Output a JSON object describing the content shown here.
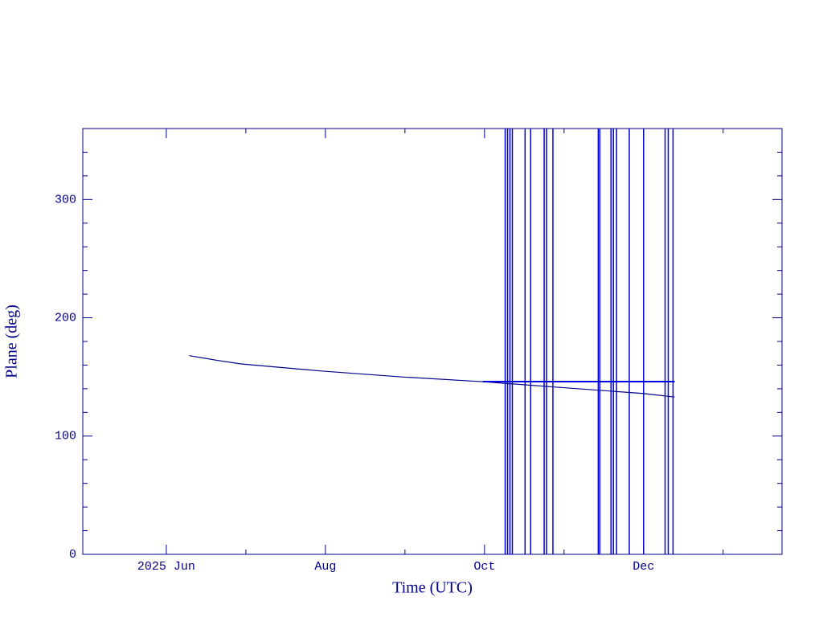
{
  "chart_data": {
    "type": "line",
    "xlabel": "Time (UTC)",
    "ylabel": "Plane (deg)",
    "xlim": [
      4.95,
      13.74
    ],
    "ylim": [
      0,
      360
    ],
    "xticks": [
      {
        "value": 6,
        "label": "2025 Jun"
      },
      {
        "value": 8,
        "label": "Aug"
      },
      {
        "value": 10,
        "label": "Oct"
      },
      {
        "value": 12,
        "label": "Dec"
      }
    ],
    "xminorticks": [
      7,
      9,
      11,
      13
    ],
    "yticks": [
      0,
      100,
      200,
      300
    ],
    "yminorticks": [
      20,
      40,
      60,
      80,
      120,
      140,
      160,
      180,
      220,
      240,
      260,
      280,
      320,
      340
    ],
    "axis_color": "#00008b",
    "series": [
      {
        "color": "#00008b",
        "x": [
          6.29,
          6.64,
          6.94,
          7.95,
          8.96,
          9.97,
          10.98,
          11.99,
          12.39
        ],
        "values": [
          168,
          164,
          161,
          155,
          150,
          146,
          141,
          136,
          133
        ]
      },
      {
        "color": "#0000e0",
        "x": [
          9.98,
          12.39
        ],
        "values": [
          146,
          146
        ]
      }
    ],
    "vlines": {
      "color": "#0000e0",
      "x": [
        10.26,
        10.29,
        10.32,
        10.35,
        10.51,
        10.58,
        10.75,
        10.78,
        10.86,
        11.43,
        11.45,
        11.59,
        11.62,
        11.66,
        11.82,
        12.0,
        12.27,
        12.31,
        12.37
      ]
    }
  }
}
